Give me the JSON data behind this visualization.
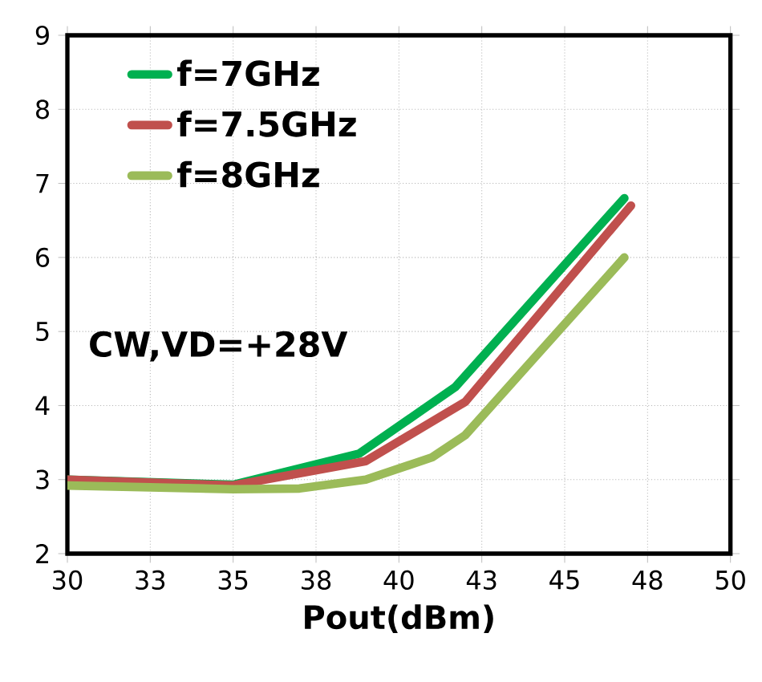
{
  "chart_data": {
    "type": "line",
    "xlabel": "Pout(dBm)",
    "xlim": [
      30,
      50
    ],
    "ylim": [
      2,
      9
    ],
    "xticks": [
      30,
      {
        "value": 32.5,
        "label": "33"
      },
      35,
      {
        "value": 37.5,
        "label": "38"
      },
      40,
      {
        "value": 42.5,
        "label": "43"
      },
      45,
      {
        "value": 47.5,
        "label": "48"
      },
      50
    ],
    "yticks": [
      2,
      3,
      4,
      5,
      6,
      7,
      8,
      9
    ],
    "grid": true,
    "legend": "top left",
    "marker": "none",
    "line_style": "solid",
    "annotations": [
      "CW,VD=+28V"
    ],
    "series": [
      {
        "name": "f=7GHz",
        "color": "#00b050",
        "x": [
          30,
          35,
          38.8,
          41.7,
          46.8
        ],
        "values": [
          3.0,
          2.93,
          3.35,
          4.25,
          6.8
        ]
      },
      {
        "name": "f=7.5GHz",
        "color": "#c0504d",
        "x": [
          30,
          35,
          39,
          42,
          47
        ],
        "values": [
          3.0,
          2.92,
          3.25,
          4.05,
          6.7
        ]
      },
      {
        "name": "f=8GHz",
        "color": "#9bbb59",
        "x": [
          30,
          35,
          37,
          39,
          41,
          42,
          44,
          46.8
        ],
        "values": [
          2.92,
          2.87,
          2.88,
          3.0,
          3.3,
          3.6,
          4.6,
          6.0
        ]
      }
    ]
  }
}
